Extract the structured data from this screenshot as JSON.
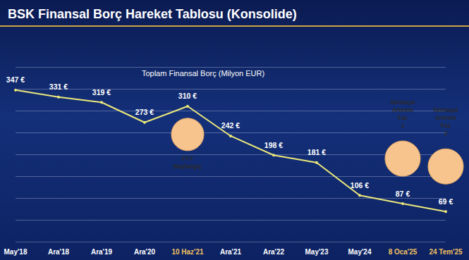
{
  "chart_data": {
    "type": "line",
    "title": "BSK Finansal Borç Hareket Tablosu (Konsolide)",
    "subtitle": "Toplam Finansal Borç (Milyon EUR)",
    "categories": [
      "May'18",
      "Ara'18",
      "Ara'19",
      "Ara'20",
      "10 Haz'21",
      "Ara'21",
      "Ara'22",
      "May'23",
      "May'24",
      "8 Oca'25",
      "24 Tem'25"
    ],
    "values": [
      347,
      331,
      319,
      273,
      310,
      242,
      198,
      181,
      106,
      87,
      69
    ],
    "value_labels": [
      "347 €",
      "331 €",
      "319 €",
      "273 €",
      "310 €",
      "242 €",
      "198 €",
      "181 €",
      "106 €",
      "87 €",
      "69 €"
    ],
    "color": "#ece87a",
    "marker": "circle",
    "ylim": [
      0,
      400
    ],
    "yticks": [
      0,
      50,
      100,
      150,
      200,
      250,
      300,
      350,
      400
    ],
    "grid": true,
    "data_labels": true,
    "tick_labels": "x",
    "annotations": [
      {
        "text": "FYY Başlangıç",
        "category": "10 Haz'21"
      },
      {
        "text": "Sermaye Artırımı Faz 1",
        "category": "8 Oca'25"
      },
      {
        "text": "Sermaye Artırımı Faz 2",
        "category": "24 Tem'25"
      }
    ]
  }
}
